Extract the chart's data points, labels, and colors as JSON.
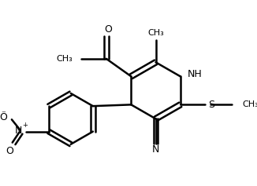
{
  "bg_color": "#ffffff",
  "line_color": "#000000",
  "line_width": 1.8,
  "figsize": [
    3.26,
    2.37
  ],
  "dpi": 100,
  "xlim": [
    0,
    326
  ],
  "ylim": [
    0,
    237
  ]
}
